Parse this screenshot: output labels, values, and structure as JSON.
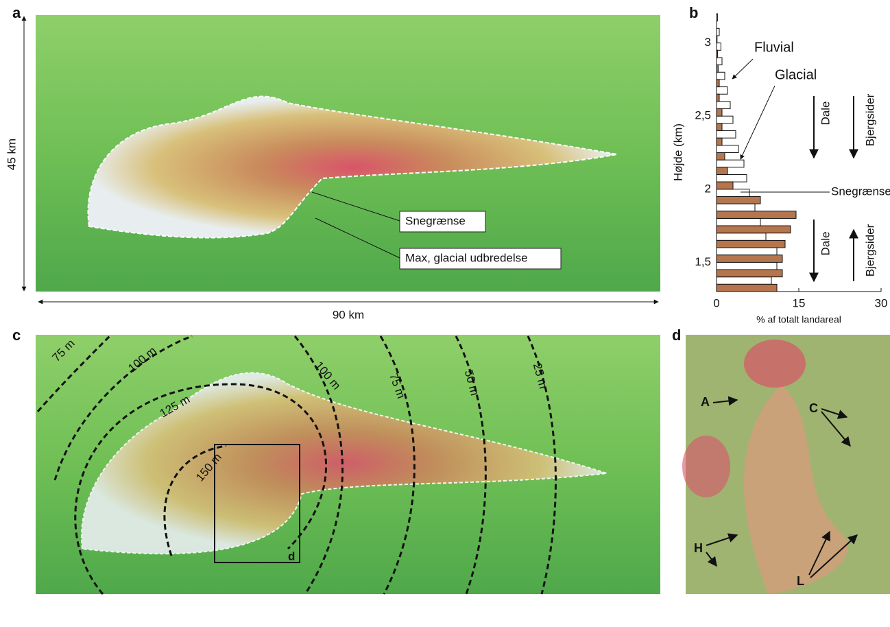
{
  "panels": {
    "a": {
      "letter": "a",
      "height_label": "45 km",
      "width_label": "90 km",
      "callouts": [
        "Snegrænse",
        "Max, glacial udbredelse"
      ]
    },
    "b": {
      "letter": "b",
      "annotations": [
        "Dale",
        "Bjergsider",
        "Snegrænse",
        "Dale",
        "Bjergsider"
      ]
    },
    "c": {
      "letter": "c",
      "contours": [
        "75 m",
        "100 m",
        "125 m",
        "150 m",
        "100 m",
        "75 m",
        "50 m",
        "25 m"
      ],
      "inset": "d"
    },
    "d": {
      "letter": "d",
      "labels": [
        "A",
        "C",
        "H",
        "L"
      ]
    }
  },
  "chart_data": {
    "type": "histogram",
    "orientation": "horizontal",
    "ylabel": "Højde (km)",
    "xlabel": "% af totalt landareal",
    "bins": [
      1.3,
      1.4,
      1.5,
      1.6,
      1.7,
      1.8,
      1.9,
      2.0,
      2.1,
      2.2,
      2.3,
      2.4,
      2.5,
      2.6,
      2.7,
      2.8,
      2.9,
      3.0,
      3.1,
      3.2
    ],
    "series": [
      {
        "name": "Glacial",
        "color": "#b5754d",
        "values": [
          11,
          12,
          12,
          12.5,
          13.5,
          14.5,
          8,
          3,
          2,
          1.5,
          1,
          1,
          1,
          0.5,
          0.5,
          0.3,
          0.2,
          0.1,
          0
        ]
      },
      {
        "name": "Fluvial",
        "color": "#ffffff",
        "values": [
          10,
          11,
          11,
          9,
          8,
          7,
          6,
          5.5,
          5,
          4,
          3.5,
          3,
          2.5,
          2,
          1.5,
          1,
          0.8,
          0.5,
          0.2
        ]
      }
    ],
    "xlim": [
      0,
      30
    ],
    "ylim": [
      1.3,
      3.2
    ],
    "xticks": [
      0,
      15,
      30
    ],
    "yticks": [
      {
        "value": 1.5,
        "label": "1,5"
      },
      2,
      {
        "value": 2.5,
        "label": "2,5"
      },
      3
    ]
  }
}
